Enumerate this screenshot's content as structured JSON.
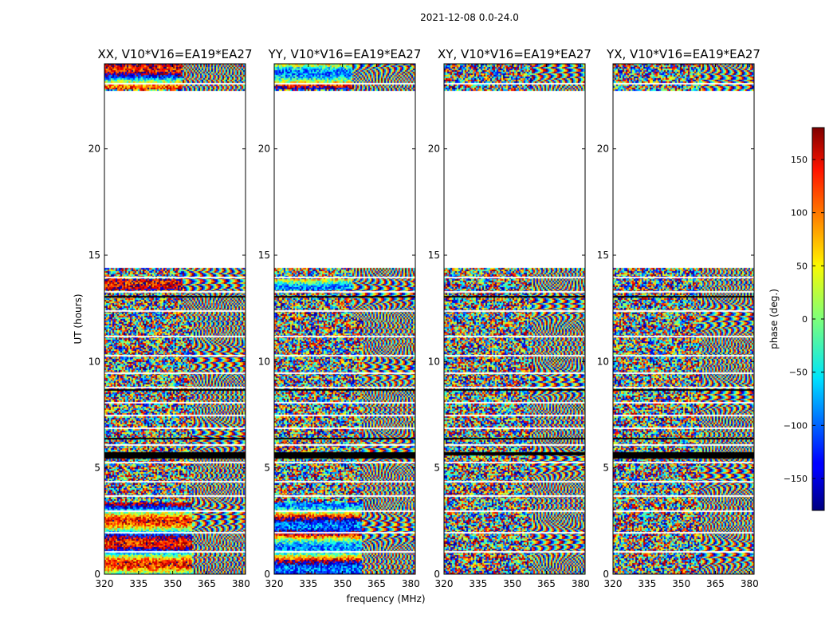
{
  "figure_title": "2021-12-08 0.0-24.0",
  "chart_data": {
    "type": "heatmap",
    "suptitle": "2021-12-08 0.0-24.0",
    "xlabel": "frequency (MHz)",
    "ylabel": "UT (hours)",
    "xlim": [
      320,
      382
    ],
    "ylim": [
      0,
      24
    ],
    "xticks": [
      320,
      335,
      350,
      365,
      380
    ],
    "yticks": [
      0,
      5,
      10,
      15,
      20
    ],
    "panels": [
      {
        "title": "XX, V10*V16=EA19*EA27",
        "pol": "XX"
      },
      {
        "title": "YY, V10*V16=EA19*EA27",
        "pol": "YY"
      },
      {
        "title": "XY, V10*V16=EA19*EA27",
        "pol": "XY"
      },
      {
        "title": "YX, V10*V16=EA19*EA27",
        "pol": "YX"
      }
    ],
    "data_ut_ranges": [
      [
        0.0,
        14.4
      ],
      [
        22.8,
        24.0
      ]
    ],
    "no_data_ut_ranges": [
      [
        14.4,
        22.8
      ]
    ],
    "colorbar": {
      "label": "phase (deg.)",
      "range": [
        -180,
        180
      ],
      "ticks": [
        -150,
        -100,
        -50,
        0,
        50,
        100,
        150
      ],
      "colormap": "jet"
    }
  }
}
